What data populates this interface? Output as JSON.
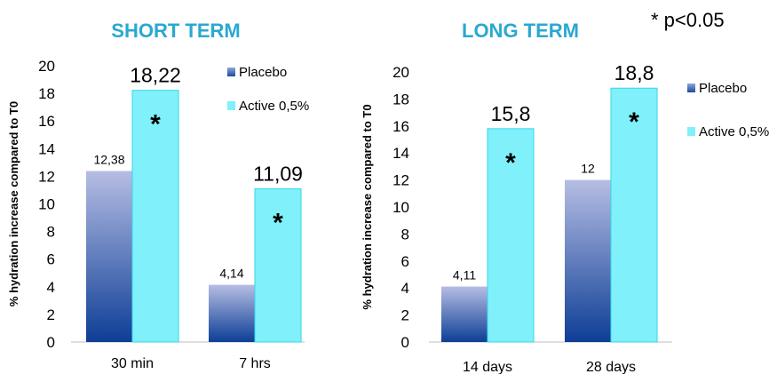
{
  "significance_note": "* p<0.05",
  "colors": {
    "title": "#2aa8d0",
    "placebo_top": "#b6bde3",
    "placebo_bottom": "#0d3e96",
    "active_fill": "#80f0fa",
    "active_stroke": "#36d6ee"
  },
  "chart_data": [
    {
      "type": "bar",
      "title": "SHORT TERM",
      "ylabel": "% hydration increase compared to T0",
      "categories": [
        "30 min",
        "7 hrs"
      ],
      "ylim": [
        0,
        20
      ],
      "yticks": [
        0,
        2,
        4,
        6,
        8,
        10,
        12,
        14,
        16,
        18,
        20
      ],
      "grid": false,
      "legend_position": "right",
      "series": [
        {
          "name": "Placebo",
          "values": [
            12.38,
            4.14
          ],
          "labels": [
            "12,38",
            "4,14"
          ],
          "markers": [
            "",
            ""
          ]
        },
        {
          "name": "Active 0,5%",
          "values": [
            18.22,
            11.09
          ],
          "labels": [
            "18,22",
            "11,09"
          ],
          "markers": [
            "*",
            "*"
          ]
        }
      ]
    },
    {
      "type": "bar",
      "title": "LONG TERM",
      "ylabel": "% hydration increase compared to T0",
      "categories": [
        "14 days",
        "28 days"
      ],
      "ylim": [
        0,
        20
      ],
      "yticks": [
        0,
        2,
        4,
        6,
        8,
        10,
        12,
        14,
        16,
        18,
        20
      ],
      "grid": false,
      "legend_position": "right",
      "series": [
        {
          "name": "Placebo",
          "values": [
            4.11,
            12
          ],
          "labels": [
            "4,11",
            "12"
          ],
          "markers": [
            "",
            ""
          ]
        },
        {
          "name": "Active 0,5%",
          "values": [
            15.8,
            18.8
          ],
          "labels": [
            "15,8",
            "18,8"
          ],
          "markers": [
            "*",
            "*"
          ]
        }
      ]
    }
  ]
}
